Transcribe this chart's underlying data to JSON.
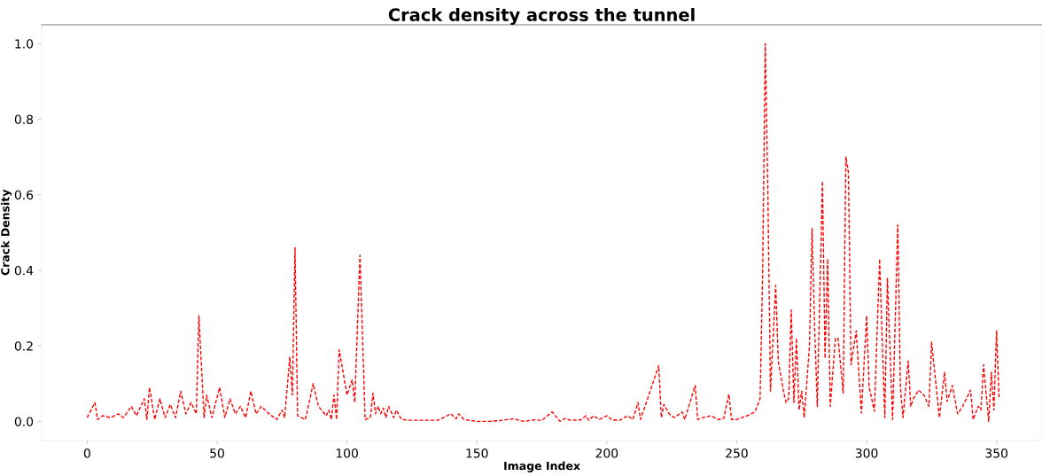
{
  "chart_data": {
    "type": "line",
    "title": "Crack density across the tunnel",
    "xlabel": "Image Index",
    "ylabel": "Crack Density",
    "x": [
      0,
      3,
      4,
      6,
      9,
      12,
      14,
      17,
      19,
      22,
      23,
      24,
      26,
      28,
      30,
      32,
      34,
      36,
      38,
      40,
      42,
      43,
      45,
      46,
      48,
      51,
      53,
      55,
      57,
      59,
      61,
      63,
      65,
      67,
      70,
      73,
      75,
      76,
      78,
      79,
      80,
      81,
      84,
      87,
      89,
      92,
      93,
      94,
      95,
      96,
      97,
      100,
      102,
      103,
      105,
      107,
      109,
      110,
      111,
      112,
      113,
      114,
      115,
      116,
      118,
      119,
      121,
      125,
      130,
      135,
      140,
      142,
      143,
      145,
      150,
      155,
      160,
      164,
      168,
      172,
      175,
      179,
      182,
      184,
      186,
      190,
      192,
      193,
      195,
      197,
      200,
      202,
      205,
      208,
      210,
      212,
      213,
      220,
      221,
      222,
      224,
      226,
      229,
      230,
      234,
      235,
      237,
      240,
      243,
      245,
      247,
      248,
      250,
      254,
      257,
      259,
      260,
      261,
      262,
      263,
      265,
      266,
      268,
      269,
      270,
      271,
      272,
      273,
      274,
      275,
      276,
      278,
      279,
      280,
      281,
      283,
      284,
      285,
      286,
      288,
      289,
      291,
      292,
      293,
      294,
      296,
      298,
      300,
      301,
      303,
      305,
      307,
      308,
      310,
      312,
      313,
      314,
      316,
      317,
      318,
      320,
      322,
      324,
      325,
      328,
      330,
      331,
      333,
      335,
      337,
      340,
      341,
      343,
      344,
      345,
      347,
      348,
      349,
      350,
      351
    ],
    "series": [
      {
        "color": "#ff0000",
        "values": [
          0.01,
          0.05,
          0.005,
          0.015,
          0.01,
          0.02,
          0.01,
          0.04,
          0.015,
          0.06,
          0.005,
          0.09,
          0.005,
          0.06,
          0.01,
          0.045,
          0.01,
          0.08,
          0.02,
          0.05,
          0.02,
          0.28,
          0.01,
          0.07,
          0.01,
          0.09,
          0.01,
          0.06,
          0.02,
          0.04,
          0.01,
          0.08,
          0.02,
          0.04,
          0.02,
          0.005,
          0.03,
          0.01,
          0.17,
          0.07,
          0.46,
          0.015,
          0.005,
          0.1,
          0.04,
          0.015,
          0.03,
          0.005,
          0.07,
          0.005,
          0.19,
          0.07,
          0.11,
          0.05,
          0.44,
          0.005,
          0.01,
          0.075,
          0.02,
          0.04,
          0.02,
          0.035,
          0.01,
          0.04,
          0.01,
          0.03,
          0.005,
          0.003,
          0.003,
          0.003,
          0.02,
          0.007,
          0.02,
          0.005,
          0.0,
          0.0,
          0.003,
          0.007,
          0.0,
          0.004,
          0.003,
          0.025,
          0.0,
          0.008,
          0.003,
          0.004,
          0.015,
          0.003,
          0.015,
          0.005,
          0.015,
          0.004,
          0.003,
          0.015,
          0.005,
          0.05,
          0.005,
          0.148,
          0.01,
          0.045,
          0.02,
          0.01,
          0.025,
          0.005,
          0.095,
          0.005,
          0.01,
          0.015,
          0.005,
          0.008,
          0.072,
          0.005,
          0.005,
          0.015,
          0.025,
          0.06,
          0.4,
          1.0,
          0.6,
          0.08,
          0.36,
          0.16,
          0.08,
          0.05,
          0.06,
          0.295,
          0.05,
          0.22,
          0.03,
          0.08,
          0.01,
          0.2,
          0.51,
          0.25,
          0.04,
          0.636,
          0.167,
          0.43,
          0.04,
          0.22,
          0.22,
          0.075,
          0.7,
          0.66,
          0.15,
          0.24,
          0.022,
          0.28,
          0.09,
          0.027,
          0.43,
          0.01,
          0.38,
          0.005,
          0.52,
          0.09,
          0.01,
          0.16,
          0.04,
          0.06,
          0.083,
          0.07,
          0.04,
          0.21,
          0.01,
          0.13,
          0.053,
          0.095,
          0.02,
          0.04,
          0.083,
          0.005,
          0.04,
          0.03,
          0.15,
          0.0,
          0.13,
          0.03,
          0.24,
          0.06
        ]
      }
    ],
    "xlim": [
      -17.5,
      367.5
    ],
    "ylim": [
      -0.05,
      1.05
    ],
    "xticks": [
      0,
      50,
      100,
      150,
      200,
      250,
      300,
      350
    ],
    "yticks": [
      {
        "value": 0,
        "label": "0.0"
      },
      {
        "value": 0.2,
        "label": "0.2"
      },
      {
        "value": 0.4,
        "label": "0.4"
      },
      {
        "value": 0.6,
        "label": "0.6"
      },
      {
        "value": 0.8,
        "label": "0.8"
      },
      {
        "value": 1,
        "label": "1.0"
      }
    ],
    "grid": false,
    "line_style": "dashed",
    "marker": "none"
  }
}
